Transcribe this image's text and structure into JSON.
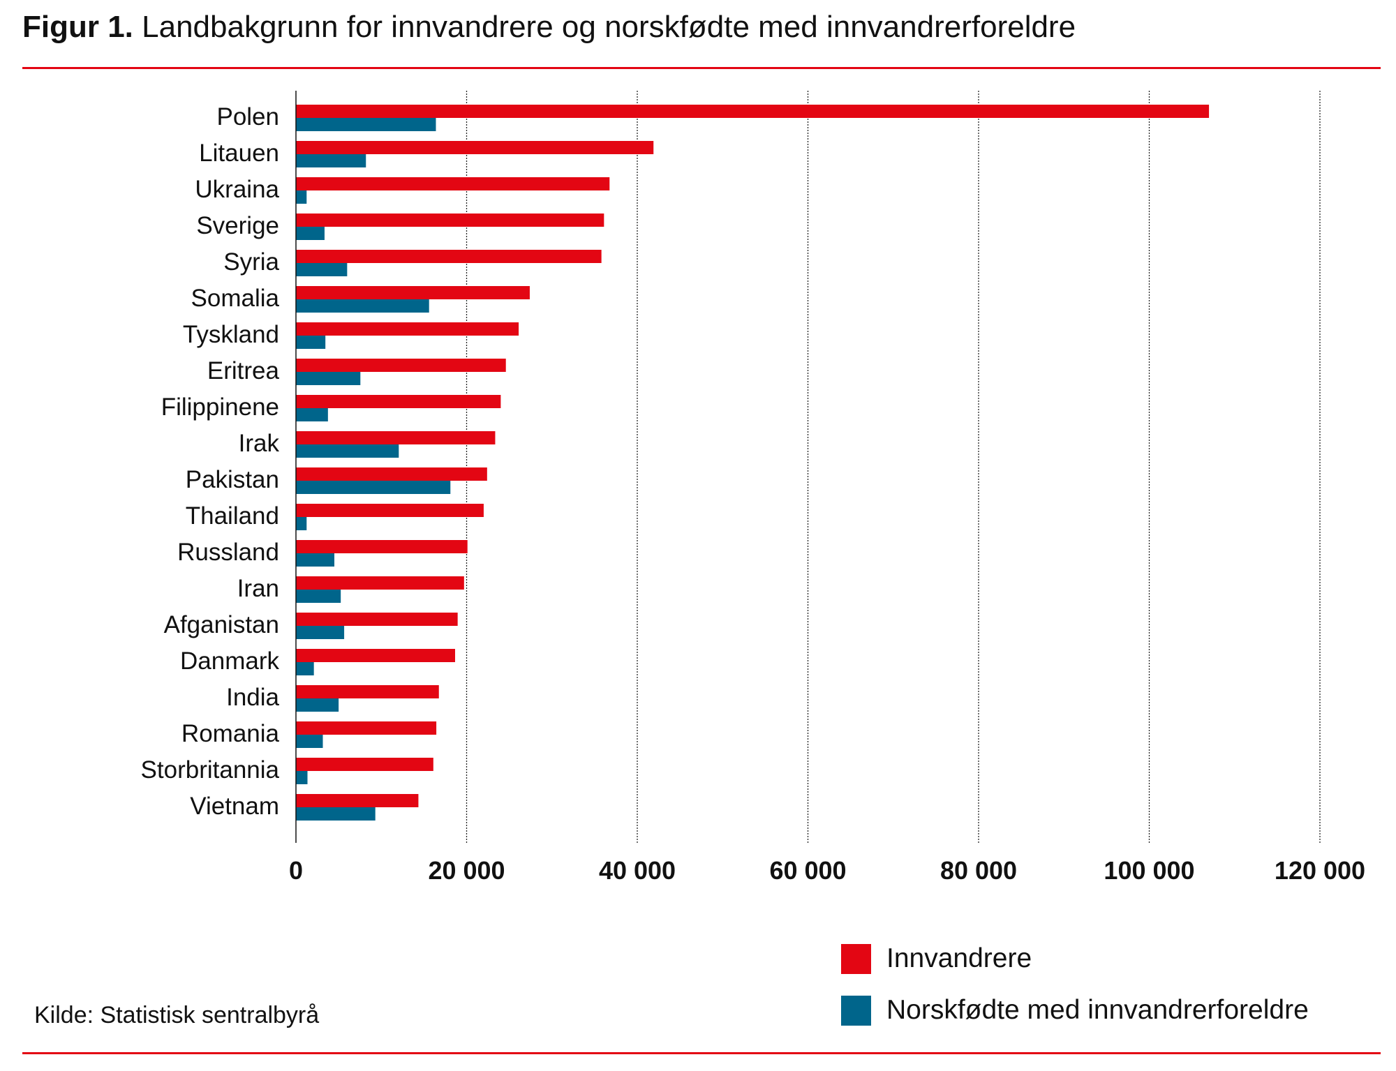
{
  "header": {
    "figure_label": "Figur 1.",
    "title": "Landbakgrunn for innvandrere og norskfødte med innvandrerforeldre"
  },
  "source": "Kilde: Statistisk sentralbyrå",
  "colors": {
    "innvandrere": "#e30613",
    "norskfodte": "#00658b",
    "rule": "#e30613"
  },
  "chart_data": {
    "type": "bar",
    "orientation": "horizontal",
    "title": "Landbakgrunn for innvandrere og norskfødte med innvandrerforeldre",
    "xlabel": "",
    "ylabel": "",
    "xlim": [
      0,
      120000
    ],
    "xticks": [
      0,
      20000,
      40000,
      60000,
      80000,
      100000,
      120000
    ],
    "xtick_labels": [
      "0",
      "20 000",
      "40 000",
      "60 000",
      "80 000",
      "100 000",
      "120 000"
    ],
    "grid": "vertical dotted",
    "legend_position": "bottom-right",
    "categories": [
      "Polen",
      "Litauen",
      "Ukraina",
      "Sverige",
      "Syria",
      "Somalia",
      "Tyskland",
      "Eritrea",
      "Filippinene",
      "Irak",
      "Pakistan",
      "Thailand",
      "Russland",
      "Iran",
      "Afganistan",
      "Danmark",
      "India",
      "Romania",
      "Storbritannia",
      "Vietnam"
    ],
    "series": [
      {
        "name": "Innvandrere",
        "values": [
          107000,
          41900,
          36750,
          36100,
          35800,
          27400,
          26100,
          24600,
          24000,
          23350,
          22400,
          22000,
          20100,
          19700,
          18950,
          18650,
          16750,
          16450,
          16100,
          14350
        ]
      },
      {
        "name": "Norskfødte med innvandrerforeldre",
        "values": [
          16400,
          8200,
          1250,
          3350,
          6000,
          15600,
          3450,
          7550,
          3750,
          12050,
          18100,
          1250,
          4500,
          5250,
          5650,
          2100,
          5000,
          3150,
          1350,
          9300
        ]
      }
    ]
  }
}
